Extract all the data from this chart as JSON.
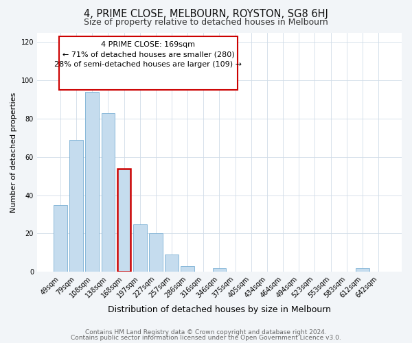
{
  "title": "4, PRIME CLOSE, MELBOURN, ROYSTON, SG8 6HJ",
  "subtitle": "Size of property relative to detached houses in Melbourn",
  "xlabel": "Distribution of detached houses by size in Melbourn",
  "ylabel": "Number of detached properties",
  "categories": [
    "49sqm",
    "79sqm",
    "108sqm",
    "138sqm",
    "168sqm",
    "197sqm",
    "227sqm",
    "257sqm",
    "286sqm",
    "316sqm",
    "346sqm",
    "375sqm",
    "405sqm",
    "434sqm",
    "464sqm",
    "494sqm",
    "523sqm",
    "553sqm",
    "583sqm",
    "612sqm",
    "642sqm"
  ],
  "values": [
    35,
    69,
    94,
    83,
    54,
    25,
    20,
    9,
    3,
    0,
    2,
    0,
    0,
    0,
    0,
    0,
    0,
    0,
    0,
    2,
    0
  ],
  "bar_color": "#c5dcee",
  "bar_edge_color": "#7aafd4",
  "highlight_bar_index": 4,
  "highlight_edge_color": "#cc0000",
  "annotation_box_text": "4 PRIME CLOSE: 169sqm\n← 71% of detached houses are smaller (280)\n28% of semi-detached houses are larger (109) →",
  "ylim": [
    0,
    125
  ],
  "yticks": [
    0,
    20,
    40,
    60,
    80,
    100,
    120
  ],
  "footer_line1": "Contains HM Land Registry data © Crown copyright and database right 2024.",
  "footer_line2": "Contains public sector information licensed under the Open Government Licence v3.0.",
  "title_fontsize": 10.5,
  "subtitle_fontsize": 9,
  "xlabel_fontsize": 9,
  "ylabel_fontsize": 8,
  "tick_fontsize": 7,
  "annotation_fontsize": 8,
  "footer_fontsize": 6.5,
  "background_color": "#f2f5f8",
  "plot_bg_color": "#ffffff",
  "grid_color": "#d0dce8"
}
